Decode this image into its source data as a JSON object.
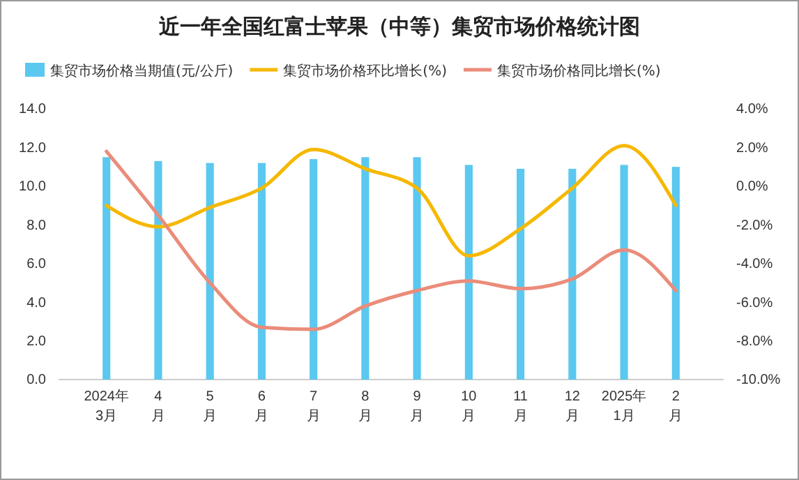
{
  "chart_data": {
    "type": "bar",
    "title": "近一年全国红富士苹果（中等）集贸市场价格统计图",
    "categories": [
      "2024年\n3月",
      "4\n月",
      "5\n月",
      "6\n月",
      "7\n月",
      "8\n月",
      "9\n月",
      "10\n月",
      "11\n月",
      "12\n月",
      "2025年\n1月",
      "2\n月"
    ],
    "series": [
      {
        "name": "集贸市场价格当期值(元/公斤)",
        "color": "#5bc8f0",
        "values": [
          11.5,
          11.3,
          11.2,
          11.2,
          11.4,
          11.5,
          11.5,
          11.1,
          10.9,
          10.9,
          11.1,
          11.0
        ]
      },
      {
        "name": "集贸市场价格环比增长(%)",
        "type": "line",
        "axis": "y2",
        "color": "#f5b800",
        "values": [
          -1.0,
          -2.1,
          -1.1,
          -0.1,
          1.9,
          0.9,
          -0.1,
          -3.6,
          -2.2,
          -0.1,
          2.1,
          -1.0
        ]
      },
      {
        "name": "集贸市场价格同比增长(%)",
        "type": "line",
        "axis": "y2",
        "color": "#ea8c7a",
        "values": [
          1.8,
          -1.5,
          -5.0,
          -7.3,
          -7.4,
          -6.2,
          -5.4,
          -4.9,
          -5.3,
          -4.8,
          -3.3,
          -5.4
        ]
      }
    ],
    "ylim": [
      0,
      14
    ],
    "yticks": [
      {
        "value": 0,
        "label": "0.0"
      },
      {
        "value": 2,
        "label": "2.0"
      },
      {
        "value": 4,
        "label": "4.0"
      },
      {
        "value": 6,
        "label": "6.0"
      },
      {
        "value": 8,
        "label": "8.0"
      },
      {
        "value": 10,
        "label": "10.0"
      },
      {
        "value": 12,
        "label": "12.0"
      },
      {
        "value": 14,
        "label": "14.0"
      }
    ],
    "y2lim": [
      -10,
      4
    ],
    "y2ticks": [
      {
        "value": -10,
        "label": "-10.0%"
      },
      {
        "value": -8,
        "label": "-8.0%"
      },
      {
        "value": -6,
        "label": "-6.0%"
      },
      {
        "value": -4,
        "label": "-4.0%"
      },
      {
        "value": -2,
        "label": "-2.0%"
      },
      {
        "value": 0,
        "label": "0.0%"
      },
      {
        "value": 2,
        "label": "2.0%"
      },
      {
        "value": 4,
        "label": "4.0%"
      }
    ],
    "legend": "top",
    "grid": false
  }
}
